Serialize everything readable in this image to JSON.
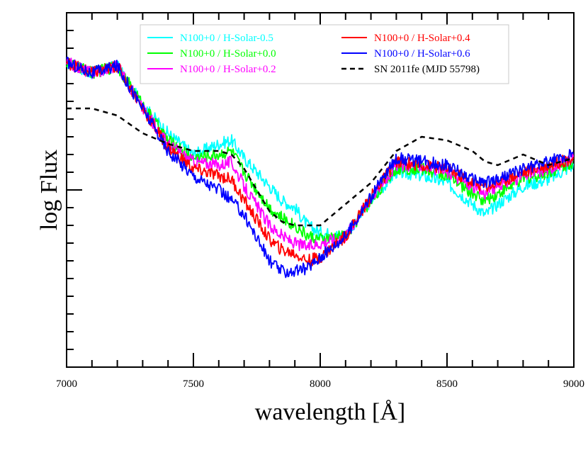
{
  "chart_data": {
    "type": "line",
    "title": "",
    "xlabel": "wavelength [Å]",
    "ylabel": "log Flux",
    "xlim": [
      7000,
      9000
    ],
    "ylim": [
      0,
      1
    ],
    "x_ticks": [
      "7000",
      "7500",
      "8000",
      "8500",
      "9000"
    ],
    "grid": false,
    "legend_position": "top",
    "x": [
      7000,
      7100,
      7200,
      7300,
      7400,
      7500,
      7600,
      7650,
      7700,
      7800,
      7850,
      7900,
      7950,
      8000,
      8100,
      8200,
      8300,
      8400,
      8500,
      8600,
      8650,
      8700,
      8800,
      8900,
      9000
    ],
    "series": [
      {
        "name": "N100+0 / H-Solar-0.5",
        "color": "#00ffff",
        "dashed": false,
        "values": [
          0.86,
          0.83,
          0.85,
          0.74,
          0.66,
          0.6,
          0.63,
          0.64,
          0.59,
          0.51,
          0.47,
          0.45,
          0.4,
          0.38,
          0.37,
          0.47,
          0.55,
          0.54,
          0.52,
          0.46,
          0.43,
          0.46,
          0.51,
          0.53,
          0.57
        ]
      },
      {
        "name": "N100+0 / H-Solar+0.0",
        "color": "#00ff00",
        "dashed": false,
        "values": [
          0.86,
          0.83,
          0.85,
          0.74,
          0.64,
          0.59,
          0.6,
          0.61,
          0.55,
          0.45,
          0.42,
          0.4,
          0.37,
          0.36,
          0.37,
          0.47,
          0.56,
          0.56,
          0.54,
          0.49,
          0.47,
          0.49,
          0.53,
          0.55,
          0.58
        ]
      },
      {
        "name": "N100+0 / H-Solar+0.2",
        "color": "#ff00ff",
        "dashed": false,
        "values": [
          0.86,
          0.83,
          0.85,
          0.73,
          0.63,
          0.58,
          0.57,
          0.58,
          0.51,
          0.4,
          0.37,
          0.35,
          0.34,
          0.35,
          0.37,
          0.48,
          0.57,
          0.57,
          0.55,
          0.51,
          0.49,
          0.51,
          0.54,
          0.56,
          0.59
        ]
      },
      {
        "name": "N100+0 / H-Solar+0.4",
        "color": "#ff0000",
        "dashed": false,
        "values": [
          0.86,
          0.83,
          0.85,
          0.73,
          0.62,
          0.56,
          0.54,
          0.53,
          0.47,
          0.36,
          0.33,
          0.32,
          0.3,
          0.31,
          0.37,
          0.48,
          0.58,
          0.57,
          0.56,
          0.52,
          0.51,
          0.52,
          0.55,
          0.57,
          0.59
        ]
      },
      {
        "name": "N100+0 / H-Solar+0.6",
        "color": "#0000ff",
        "dashed": false,
        "values": [
          0.86,
          0.83,
          0.85,
          0.73,
          0.61,
          0.54,
          0.5,
          0.47,
          0.43,
          0.3,
          0.27,
          0.27,
          0.28,
          0.31,
          0.37,
          0.48,
          0.59,
          0.58,
          0.57,
          0.53,
          0.52,
          0.53,
          0.56,
          0.58,
          0.6
        ]
      },
      {
        "name": "SN 2011fe (MJD 55798)",
        "color": "#000000",
        "dashed": true,
        "values": [
          0.73,
          0.73,
          0.71,
          0.66,
          0.63,
          0.61,
          0.61,
          0.6,
          0.56,
          0.44,
          0.41,
          0.4,
          0.4,
          0.4,
          0.46,
          0.52,
          0.61,
          0.65,
          0.64,
          0.61,
          0.58,
          0.57,
          0.6,
          0.57,
          0.59
        ]
      }
    ]
  }
}
